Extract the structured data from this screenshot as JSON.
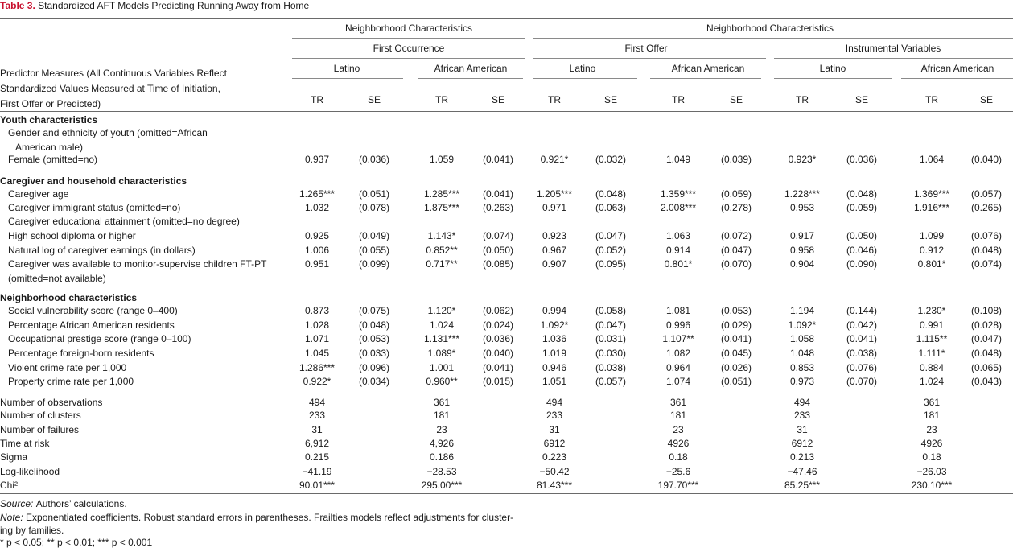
{
  "title": {
    "label": "Table 3.",
    "text": "Standardized AFT Models Predicting Running Away from Home"
  },
  "header": {
    "group1": "Neighborhood Characteristics",
    "group2": "Neighborhood Characteristics",
    "sub1": "First Occurrence",
    "sub2": "First Offer",
    "sub3": "Instrumental Variables",
    "pop": [
      "Latino",
      "African American",
      "Latino",
      "African American",
      "Latino",
      "African American"
    ],
    "stub": [
      "Predictor Measures (All Continuous Variables Reflect",
      "Standardized Values Measured at Time of Initiation,",
      "First Offer or Predicted)"
    ],
    "tr": "TR",
    "se": "SE"
  },
  "sections": [
    {
      "title": "Youth characteristics",
      "rows": [
        {
          "label": "Gender and ethnicity of youth (omitted=African",
          "indent": 1,
          "values": []
        },
        {
          "label": "American male)",
          "indent": 2,
          "values": []
        },
        {
          "label": "Female (omitted=no)",
          "indent": 1,
          "values": [
            "0.937",
            "(0.036)",
            "1.059",
            "(0.041)",
            "0.921*",
            "(0.032)",
            "1.049",
            "(0.039)",
            "0.923*",
            "(0.036)",
            "1.064",
            "(0.040)"
          ]
        }
      ]
    },
    {
      "title": "Caregiver and household characteristics",
      "rows": [
        {
          "label": "Caregiver age",
          "indent": 1,
          "values": [
            "1.265***",
            "(0.051)",
            "1.285***",
            "(0.041)",
            "1.205***",
            "(0.048)",
            "1.359***",
            "(0.059)",
            "1.228***",
            "(0.048)",
            "1.369***",
            "(0.057)"
          ]
        },
        {
          "label": "Caregiver immigrant status (omitted=no)",
          "indent": 1,
          "values": [
            "1.032",
            "(0.078)",
            "1.875***",
            "(0.263)",
            "0.971",
            "(0.063)",
            "2.008***",
            "(0.278)",
            "0.953",
            "(0.059)",
            "1.916***",
            "(0.265)"
          ]
        },
        {
          "label": "Caregiver educational attainment  (omitted=no degree)",
          "indent": 1,
          "values": []
        },
        {
          "label": "High school diploma or higher",
          "indent": 1,
          "values": [
            "0.925",
            "(0.049)",
            "1.143*",
            "(0.074)",
            "0.923",
            "(0.047)",
            "1.063",
            "(0.072)",
            "0.917",
            "(0.050)",
            "1.099",
            "(0.076)"
          ]
        },
        {
          "label": "Natural log of caregiver earnings (in dollars)",
          "indent": 1,
          "values": [
            "1.006",
            "(0.055)",
            "0.852**",
            "(0.050)",
            "0.967",
            "(0.052)",
            "0.914",
            "(0.047)",
            "0.958",
            "(0.046)",
            "0.912",
            "(0.048)"
          ]
        },
        {
          "label": "Caregiver was available to monitor-supervise children FT-PT",
          "indent": 1,
          "values": [
            "0.951",
            "(0.099)",
            "0.717**",
            "(0.085)",
            "0.907",
            "(0.095)",
            "0.801*",
            "(0.070)",
            "0.904",
            "(0.090)",
            "0.801*",
            "(0.074)"
          ]
        },
        {
          "label": "(omitted=not available)",
          "indent": 1,
          "values": []
        }
      ]
    },
    {
      "title": "Neighborhood characteristics",
      "rows": [
        {
          "label": "Social vulnerability score (range 0–400)",
          "indent": 1,
          "values": [
            "0.873",
            "(0.075)",
            "1.120*",
            "(0.062)",
            "0.994",
            "(0.058)",
            "1.081",
            "(0.053)",
            "1.194",
            "(0.144)",
            "1.230*",
            "(0.108)"
          ]
        },
        {
          "label": "Percentage African American residents",
          "indent": 1,
          "values": [
            "1.028",
            "(0.048)",
            "1.024",
            "(0.024)",
            "1.092*",
            "(0.047)",
            "0.996",
            "(0.029)",
            "1.092*",
            "(0.042)",
            "0.991",
            "(0.028)"
          ]
        },
        {
          "label": "Occupational prestige score (range 0–100)",
          "indent": 1,
          "values": [
            "1.071",
            "(0.053)",
            "1.131***",
            "(0.036)",
            "1.036",
            "(0.031)",
            "1.107**",
            "(0.041)",
            "1.058",
            "(0.041)",
            "1.115**",
            "(0.047)"
          ]
        },
        {
          "label": "Percentage foreign-born residents",
          "indent": 1,
          "values": [
            "1.045",
            "(0.033)",
            "1.089*",
            "(0.040)",
            "1.019",
            "(0.030)",
            "1.082",
            "(0.045)",
            "1.048",
            "(0.038)",
            "1.111*",
            "(0.048)"
          ]
        },
        {
          "label": "Violent crime rate per 1,000",
          "indent": 1,
          "values": [
            "1.286***",
            "(0.096)",
            "1.001",
            "(0.041)",
            "0.946",
            "(0.038)",
            "0.964",
            "(0.026)",
            "0.853",
            "(0.076)",
            "0.884",
            "(0.065)"
          ]
        },
        {
          "label": "Property crime rate per 1,000",
          "indent": 1,
          "values": [
            "0.922*",
            "(0.034)",
            "0.960**",
            "(0.015)",
            "1.051",
            "(0.057)",
            "1.074",
            "(0.051)",
            "0.973",
            "(0.070)",
            "1.024",
            "(0.043)"
          ]
        }
      ]
    }
  ],
  "stats": [
    {
      "label": "Number of observations",
      "values": [
        "494",
        "361",
        "494",
        "361",
        "494",
        "361"
      ]
    },
    {
      "label": "Number of clusters",
      "values": [
        "233",
        "181",
        "233",
        "181",
        "233",
        "181"
      ]
    },
    {
      "label": "Number of failures",
      "values": [
        "31",
        "23",
        "31",
        "23",
        "31",
        "23"
      ]
    },
    {
      "label": "Time at risk",
      "values": [
        "6,912",
        "4,926",
        "6912",
        "4926",
        "6912",
        "4926"
      ]
    },
    {
      "label": "Sigma",
      "values": [
        "0.215",
        "0.186",
        "0.223",
        "0.18",
        "0.213",
        "0.18"
      ]
    },
    {
      "label": "Log-likelihood",
      "values": [
        "−41.19",
        "−28.53",
        "−50.42",
        "−25.6",
        "−47.46",
        "−26.03"
      ]
    },
    {
      "label": "Chi²",
      "values": [
        "90.01***",
        "295.00***",
        "81.43***",
        "197.70***",
        "85.25***",
        "230.10***"
      ]
    }
  ],
  "footnotes": {
    "source_label": "Source:",
    "source_text": "Authors’ calculations.",
    "note_label": "Note:",
    "note_text": "Exponentiated coefficients. Robust standard errors in parentheses. Frailties models reflect adjustments for cluster-",
    "note_text2": "ing by families.",
    "sig": "* p < 0.05; ** p < 0.01; *** p < 0.001"
  }
}
